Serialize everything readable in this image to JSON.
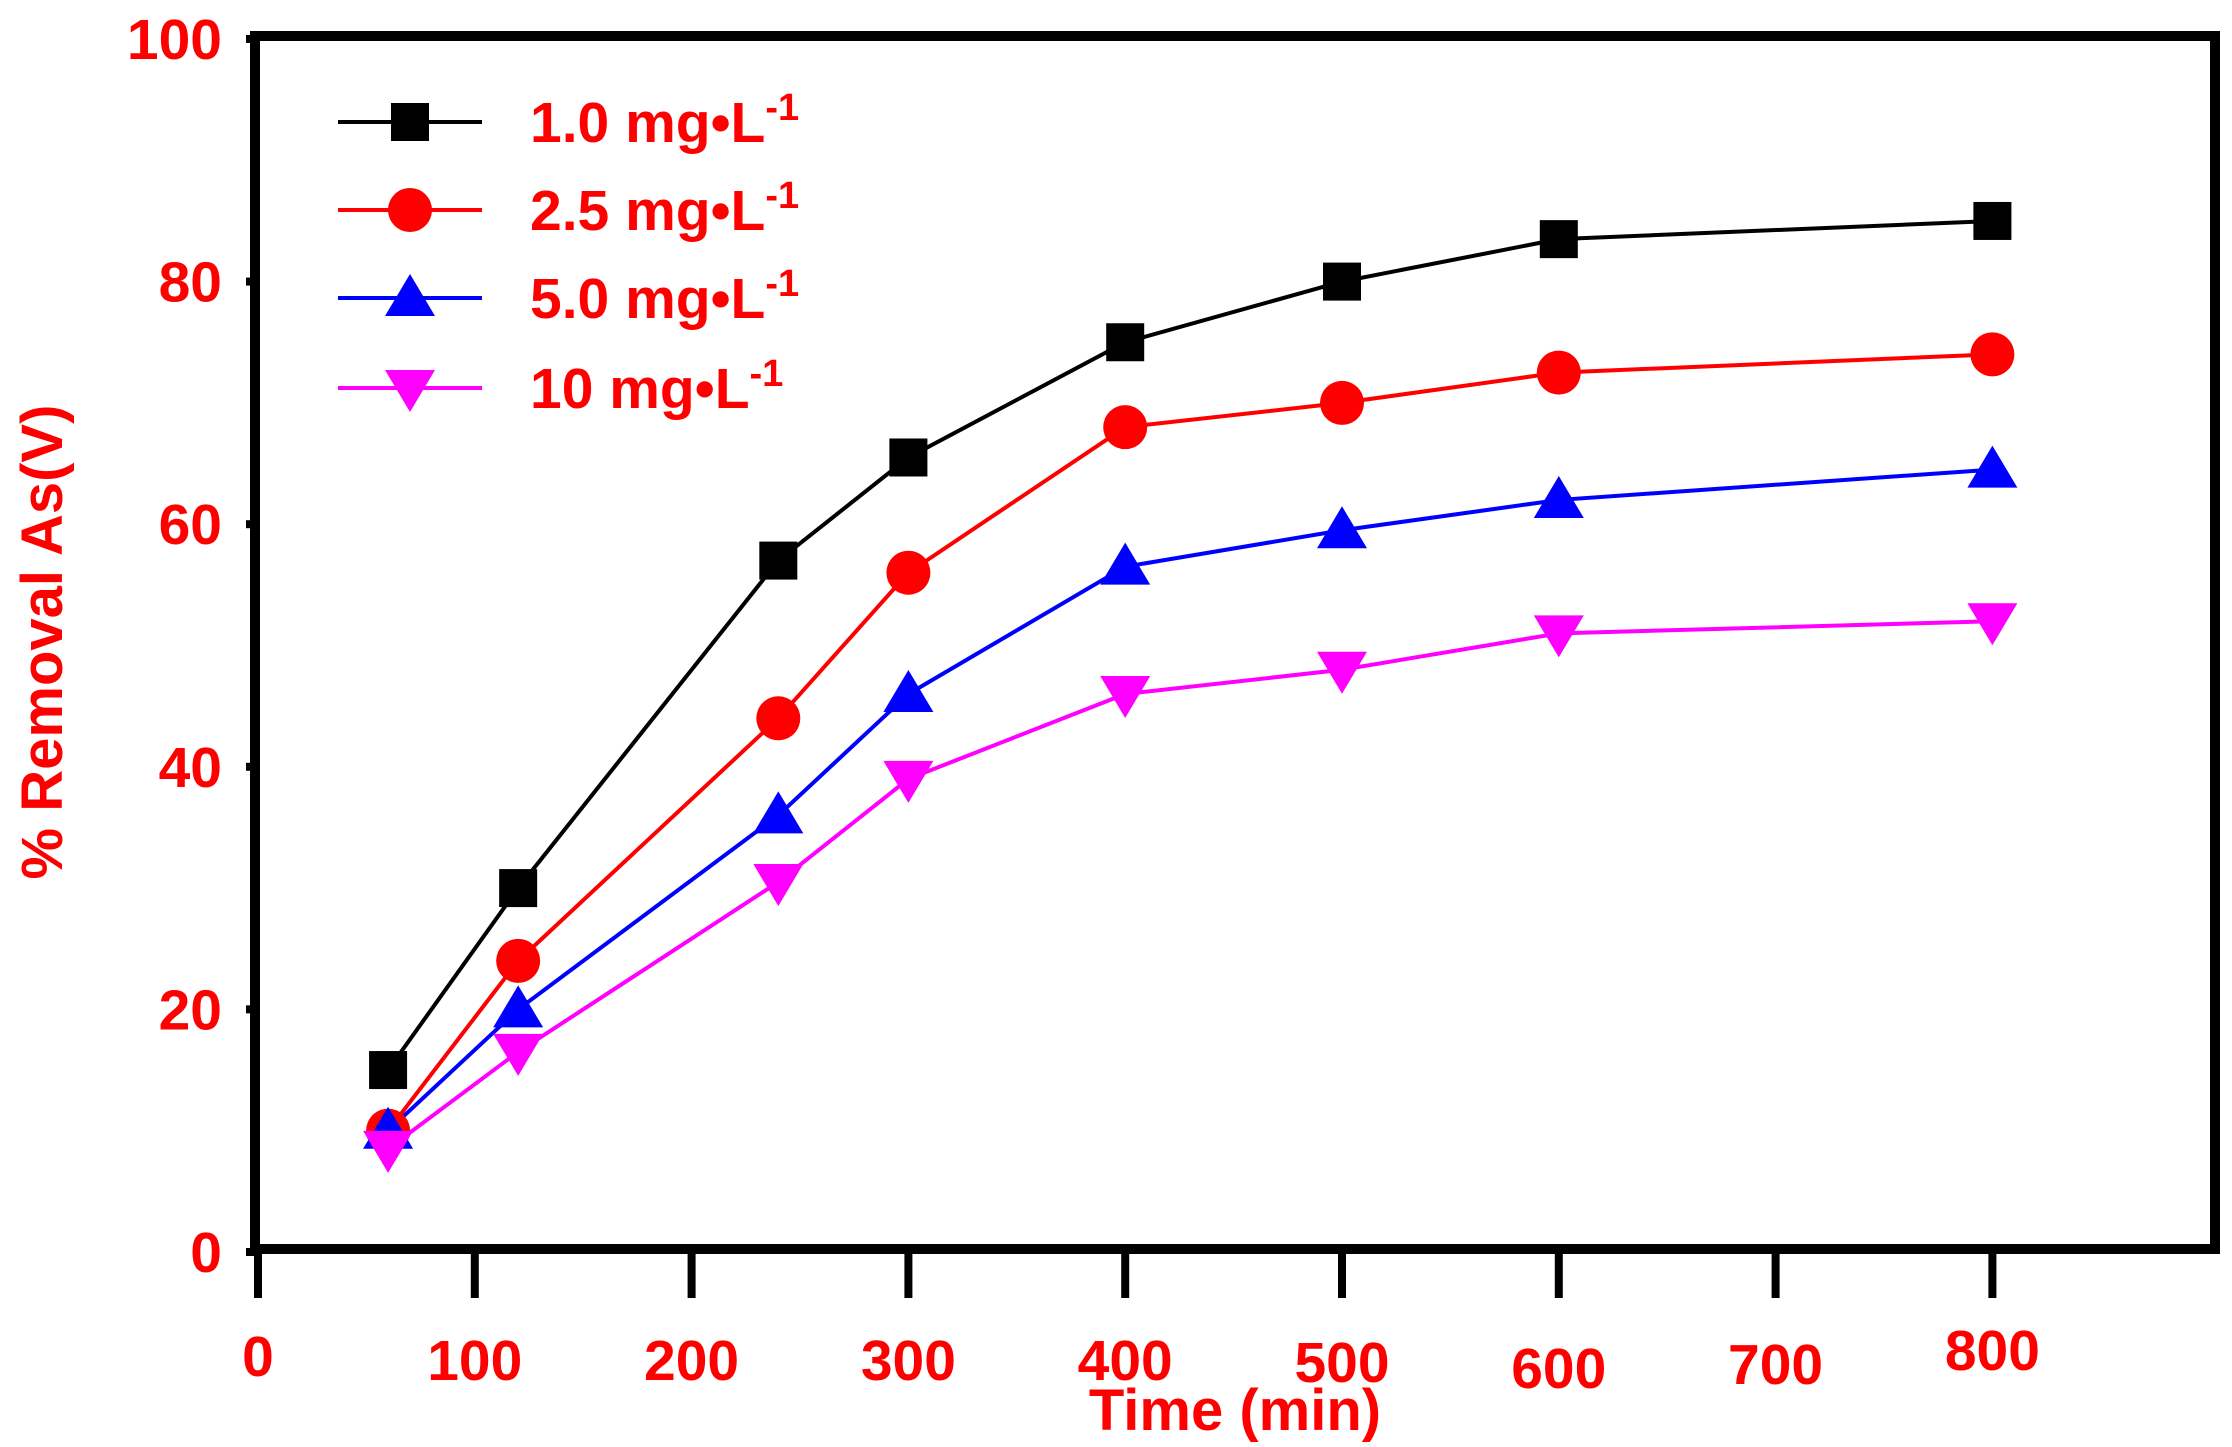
{
  "chart_data": {
    "type": "line",
    "title": "",
    "xlabel": "Time (min)",
    "ylabel": "% Removal As(V)",
    "xlim": [
      0,
      900
    ],
    "ylim": [
      0,
      100
    ],
    "xticks": [
      "0",
      "100",
      "200",
      "300",
      "400",
      "500",
      "600",
      "700",
      "800"
    ],
    "yticks": [
      "0",
      "20",
      "40",
      "60",
      "80",
      "100"
    ],
    "grid": false,
    "legend_position": "top-left",
    "x": [
      60,
      120,
      240,
      300,
      400,
      500,
      600,
      800
    ],
    "series": [
      {
        "label_main": "1.0 mg•L",
        "label_sup": "-1",
        "color": "#000000",
        "marker": "square",
        "values": [
          15,
          30,
          57,
          65.5,
          75,
          80,
          83.5,
          85
        ]
      },
      {
        "label_main": "2.5 mg•L",
        "label_sup": "-1",
        "color": "#ff0000",
        "marker": "circle",
        "values": [
          10,
          24,
          44,
          56,
          68,
          70,
          72.5,
          74
        ]
      },
      {
        "label_main": "5.0 mg•L",
        "label_sup": "-1",
        "color": "#0000ff",
        "marker": "triangle-up",
        "values": [
          10,
          20,
          36,
          46,
          56.5,
          59.5,
          62,
          64.5
        ]
      },
      {
        "label_main": " 10 mg•L",
        "label_sup": "-1",
        "color": "#ff00ff",
        "marker": "triangle-down",
        "values": [
          8.5,
          16.5,
          30.5,
          39,
          46,
          48,
          51,
          52
        ]
      }
    ]
  }
}
